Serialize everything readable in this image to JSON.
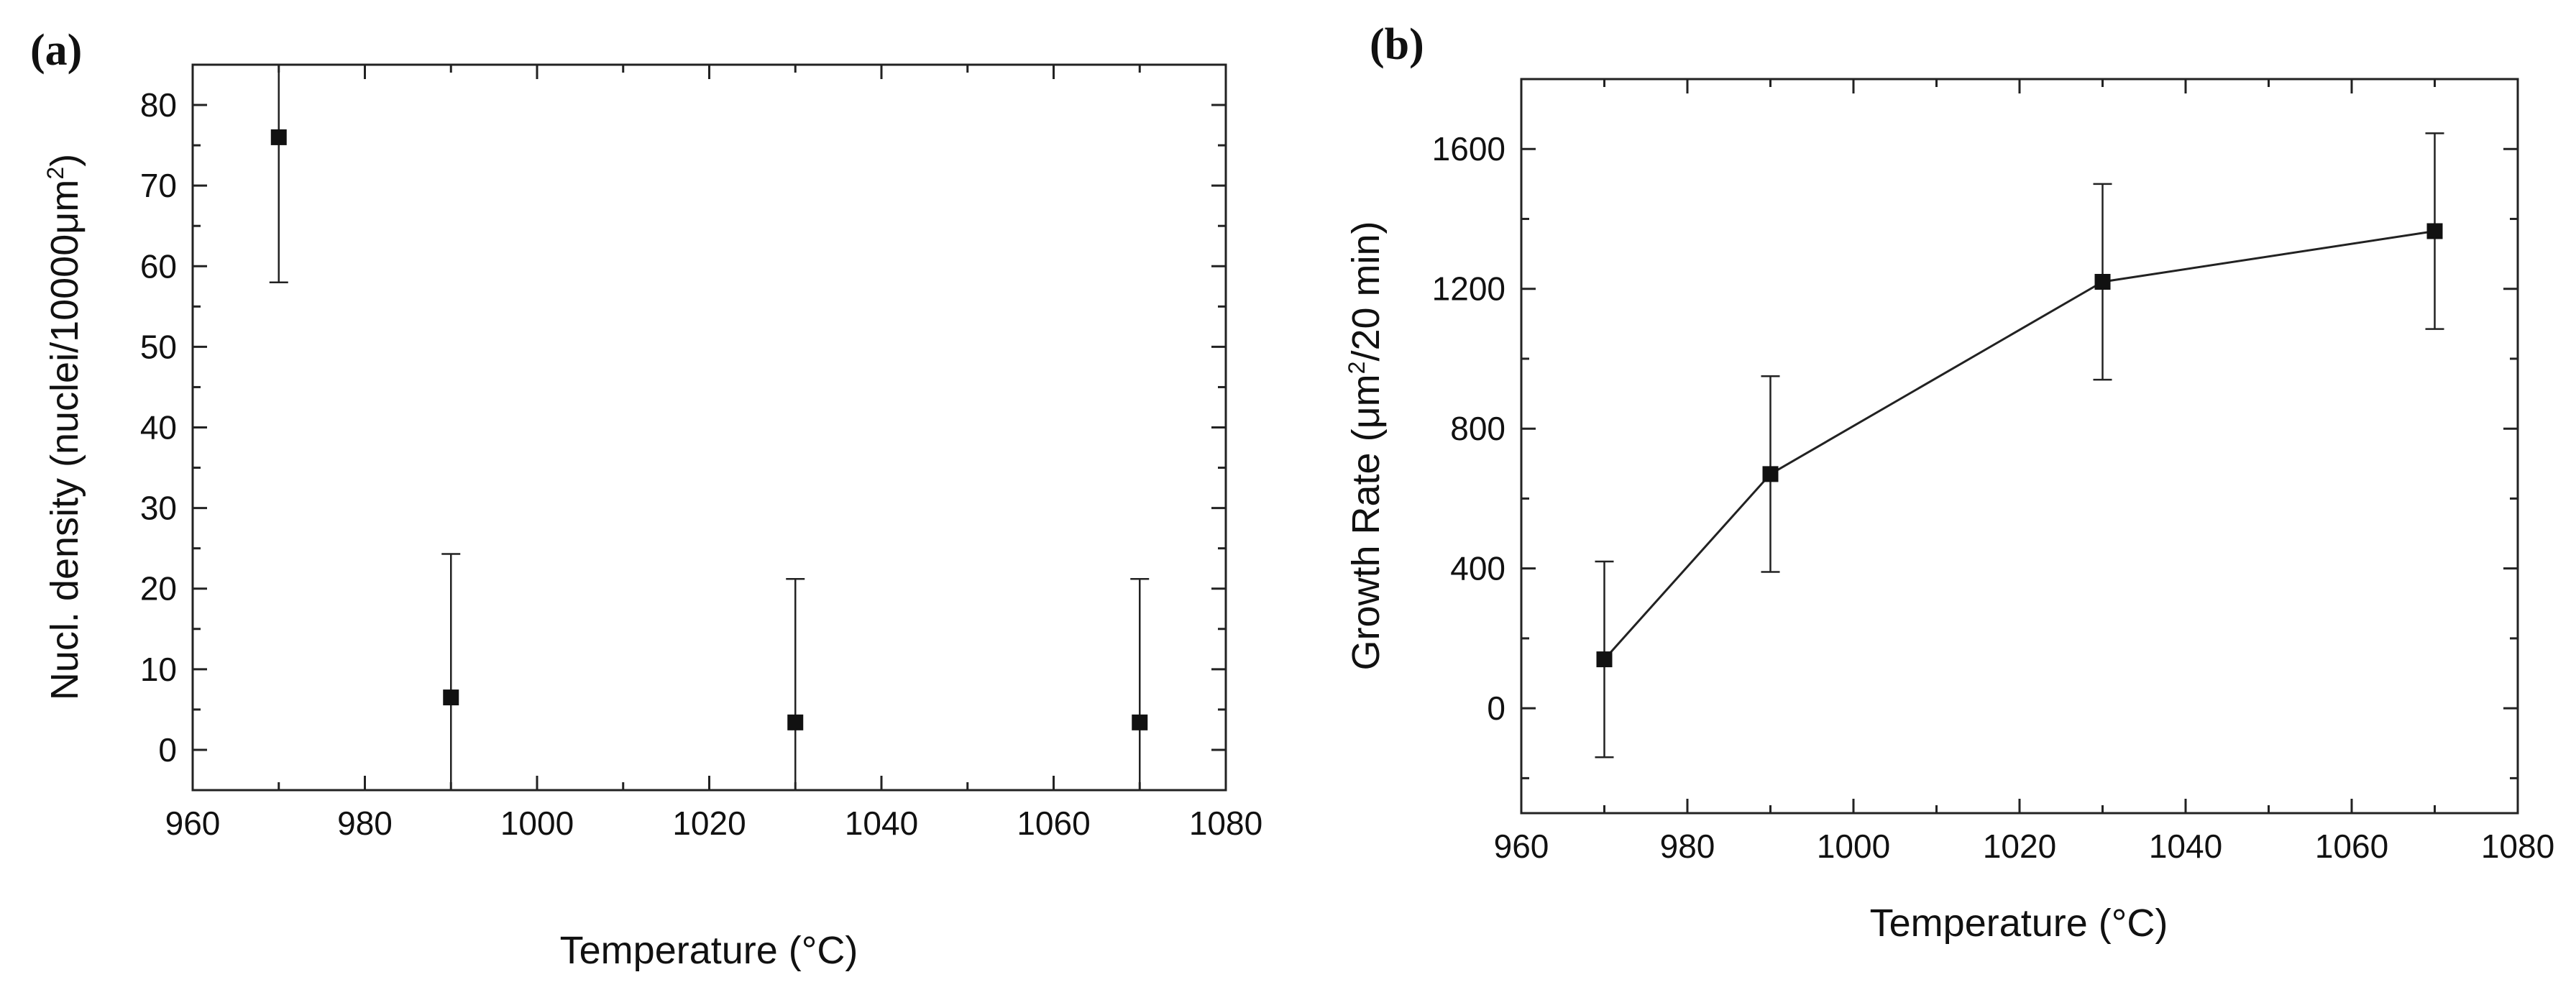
{
  "chart_data": [
    {
      "panel": "(a)",
      "type": "scatter",
      "title": "",
      "xlabel": "Temperature (°C)",
      "ylabel": {
        "pre": "Nucl. density (nuclei/10000μm",
        "sup": "2",
        "post": ")"
      },
      "xlim": [
        960,
        1080
      ],
      "ylim": [
        -5,
        85
      ],
      "xticks": [
        960,
        980,
        1000,
        1020,
        1040,
        1060,
        1080
      ],
      "yticks": [
        0,
        10,
        20,
        30,
        40,
        50,
        60,
        70,
        80
      ],
      "xtick_labels": [
        "960",
        "980",
        "1000",
        "1020",
        "1040",
        "1060",
        "1080"
      ],
      "ytick_labels": [
        "0",
        "10",
        "20",
        "30",
        "40",
        "50",
        "60",
        "70",
        "80"
      ],
      "x_minor_step": 10,
      "y_minor_step": 5,
      "connected": false,
      "points": [
        {
          "x": 970,
          "y": 76,
          "err_low": 58,
          "err_high": 85
        },
        {
          "x": 990,
          "y": 6.5,
          "err_low": -5,
          "err_high": 24.3
        },
        {
          "x": 1030,
          "y": 3.4,
          "err_low": -5,
          "err_high": 21.2
        },
        {
          "x": 1070,
          "y": 3.4,
          "err_low": -5,
          "err_high": 21.2
        }
      ],
      "grid": false,
      "legend": "none"
    },
    {
      "panel": "(b)",
      "type": "line",
      "title": "",
      "xlabel": "Temperature (°C)",
      "ylabel": {
        "pre": "Growth Rate (μm",
        "sup": "2",
        "post": "/20 min)"
      },
      "xlim": [
        960,
        1080
      ],
      "ylim": [
        -300,
        1800
      ],
      "xticks": [
        960,
        980,
        1000,
        1020,
        1040,
        1060,
        1080
      ],
      "yticks": [
        0,
        400,
        800,
        1200,
        1600
      ],
      "xtick_labels": [
        "960",
        "980",
        "1000",
        "1020",
        "1040",
        "1060",
        "1080"
      ],
      "ytick_labels": [
        "0",
        "400",
        "800",
        "1200",
        "1600"
      ],
      "x_minor_step": 10,
      "y_minor_step": 200,
      "connected": true,
      "points": [
        {
          "x": 970,
          "y": 140,
          "err_low": -140,
          "err_high": 420
        },
        {
          "x": 990,
          "y": 670,
          "err_low": 390,
          "err_high": 950
        },
        {
          "x": 1030,
          "y": 1220,
          "err_low": 940,
          "err_high": 1500
        },
        {
          "x": 1070,
          "y": 1365,
          "err_low": 1085,
          "err_high": 1645
        }
      ],
      "grid": false,
      "legend": "none"
    }
  ]
}
